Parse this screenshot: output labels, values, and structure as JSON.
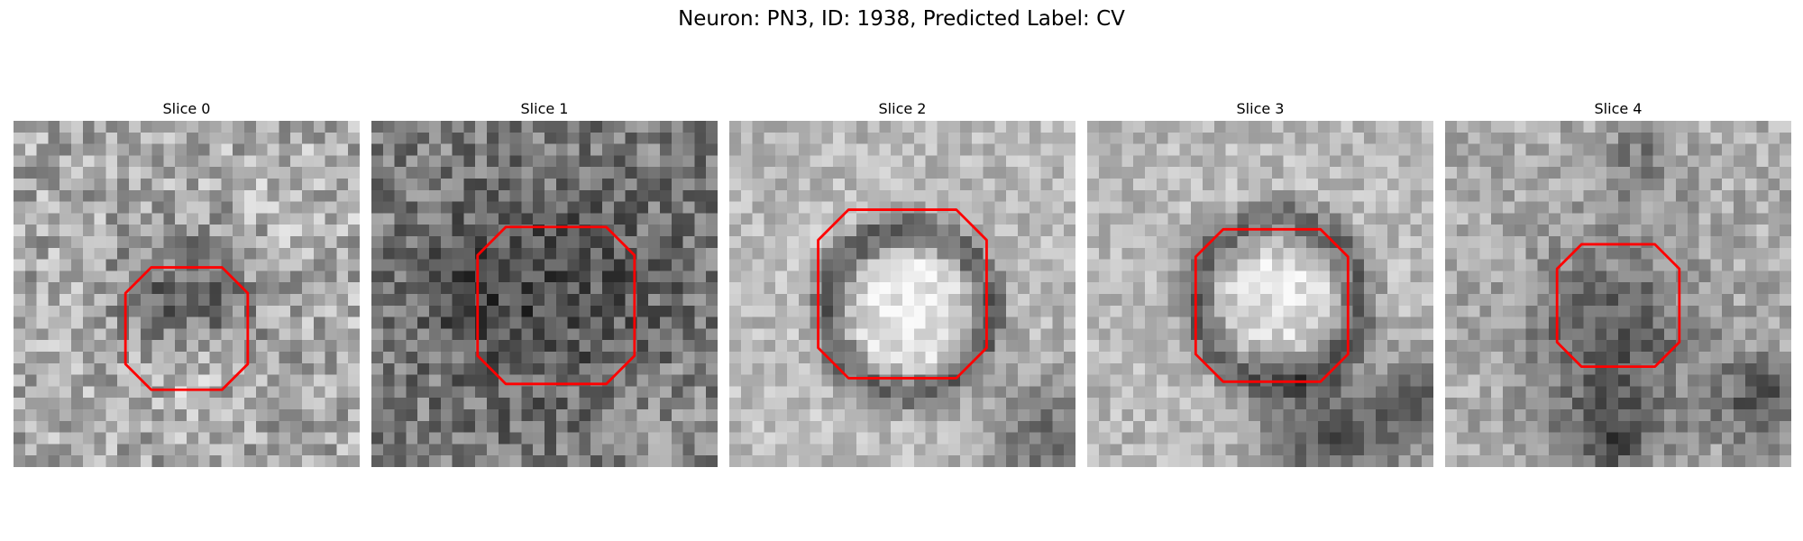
{
  "figure": {
    "title": "Neuron: PN3, ID: 1938, Predicted Label: CV"
  },
  "panels": [
    {
      "title": "Slice 0",
      "contour_color": "#ff0000"
    },
    {
      "title": "Slice 1",
      "contour_color": "#ff0000"
    },
    {
      "title": "Slice 2",
      "contour_color": "#ff0000"
    },
    {
      "title": "Slice 3",
      "contour_color": "#ff0000"
    },
    {
      "title": "Slice 4",
      "contour_color": "#ff0000"
    }
  ]
}
